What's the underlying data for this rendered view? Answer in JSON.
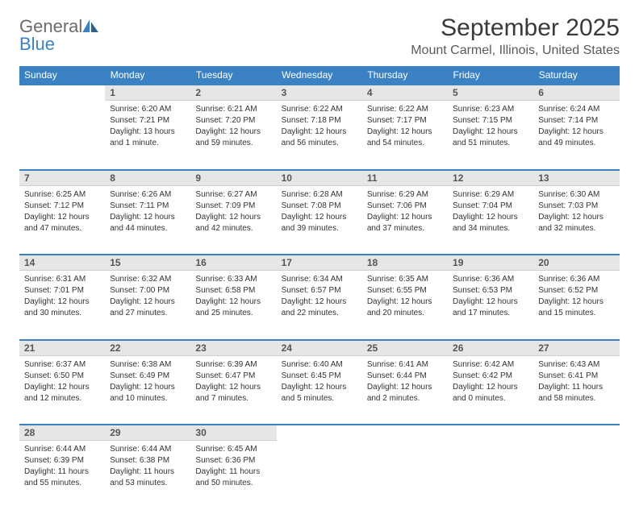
{
  "logo": {
    "word1": "General",
    "word2": "Blue"
  },
  "title": "September 2025",
  "location": "Mount Carmel, Illinois, United States",
  "colors": {
    "header_bg": "#3b82c4",
    "header_text": "#ffffff",
    "daynum_bg": "#e6e6e6",
    "border_blue": "#3b82c4",
    "text": "#333333",
    "logo_gray": "#6b6b6b",
    "logo_blue": "#3b82c4"
  },
  "dayHeaders": [
    "Sunday",
    "Monday",
    "Tuesday",
    "Wednesday",
    "Thursday",
    "Friday",
    "Saturday"
  ],
  "weeks": [
    {
      "nums": [
        "",
        "1",
        "2",
        "3",
        "4",
        "5",
        "6"
      ],
      "cells": [
        null,
        {
          "sunrise": "6:20 AM",
          "sunset": "7:21 PM",
          "daylight": "13 hours and 1 minute."
        },
        {
          "sunrise": "6:21 AM",
          "sunset": "7:20 PM",
          "daylight": "12 hours and 59 minutes."
        },
        {
          "sunrise": "6:22 AM",
          "sunset": "7:18 PM",
          "daylight": "12 hours and 56 minutes."
        },
        {
          "sunrise": "6:22 AM",
          "sunset": "7:17 PM",
          "daylight": "12 hours and 54 minutes."
        },
        {
          "sunrise": "6:23 AM",
          "sunset": "7:15 PM",
          "daylight": "12 hours and 51 minutes."
        },
        {
          "sunrise": "6:24 AM",
          "sunset": "7:14 PM",
          "daylight": "12 hours and 49 minutes."
        }
      ]
    },
    {
      "nums": [
        "7",
        "8",
        "9",
        "10",
        "11",
        "12",
        "13"
      ],
      "cells": [
        {
          "sunrise": "6:25 AM",
          "sunset": "7:12 PM",
          "daylight": "12 hours and 47 minutes."
        },
        {
          "sunrise": "6:26 AM",
          "sunset": "7:11 PM",
          "daylight": "12 hours and 44 minutes."
        },
        {
          "sunrise": "6:27 AM",
          "sunset": "7:09 PM",
          "daylight": "12 hours and 42 minutes."
        },
        {
          "sunrise": "6:28 AM",
          "sunset": "7:08 PM",
          "daylight": "12 hours and 39 minutes."
        },
        {
          "sunrise": "6:29 AM",
          "sunset": "7:06 PM",
          "daylight": "12 hours and 37 minutes."
        },
        {
          "sunrise": "6:29 AM",
          "sunset": "7:04 PM",
          "daylight": "12 hours and 34 minutes."
        },
        {
          "sunrise": "6:30 AM",
          "sunset": "7:03 PM",
          "daylight": "12 hours and 32 minutes."
        }
      ]
    },
    {
      "nums": [
        "14",
        "15",
        "16",
        "17",
        "18",
        "19",
        "20"
      ],
      "cells": [
        {
          "sunrise": "6:31 AM",
          "sunset": "7:01 PM",
          "daylight": "12 hours and 30 minutes."
        },
        {
          "sunrise": "6:32 AM",
          "sunset": "7:00 PM",
          "daylight": "12 hours and 27 minutes."
        },
        {
          "sunrise": "6:33 AM",
          "sunset": "6:58 PM",
          "daylight": "12 hours and 25 minutes."
        },
        {
          "sunrise": "6:34 AM",
          "sunset": "6:57 PM",
          "daylight": "12 hours and 22 minutes."
        },
        {
          "sunrise": "6:35 AM",
          "sunset": "6:55 PM",
          "daylight": "12 hours and 20 minutes."
        },
        {
          "sunrise": "6:36 AM",
          "sunset": "6:53 PM",
          "daylight": "12 hours and 17 minutes."
        },
        {
          "sunrise": "6:36 AM",
          "sunset": "6:52 PM",
          "daylight": "12 hours and 15 minutes."
        }
      ]
    },
    {
      "nums": [
        "21",
        "22",
        "23",
        "24",
        "25",
        "26",
        "27"
      ],
      "cells": [
        {
          "sunrise": "6:37 AM",
          "sunset": "6:50 PM",
          "daylight": "12 hours and 12 minutes."
        },
        {
          "sunrise": "6:38 AM",
          "sunset": "6:49 PM",
          "daylight": "12 hours and 10 minutes."
        },
        {
          "sunrise": "6:39 AM",
          "sunset": "6:47 PM",
          "daylight": "12 hours and 7 minutes."
        },
        {
          "sunrise": "6:40 AM",
          "sunset": "6:45 PM",
          "daylight": "12 hours and 5 minutes."
        },
        {
          "sunrise": "6:41 AM",
          "sunset": "6:44 PM",
          "daylight": "12 hours and 2 minutes."
        },
        {
          "sunrise": "6:42 AM",
          "sunset": "6:42 PM",
          "daylight": "12 hours and 0 minutes."
        },
        {
          "sunrise": "6:43 AM",
          "sunset": "6:41 PM",
          "daylight": "11 hours and 58 minutes."
        }
      ]
    },
    {
      "nums": [
        "28",
        "29",
        "30",
        "",
        "",
        "",
        ""
      ],
      "cells": [
        {
          "sunrise": "6:44 AM",
          "sunset": "6:39 PM",
          "daylight": "11 hours and 55 minutes."
        },
        {
          "sunrise": "6:44 AM",
          "sunset": "6:38 PM",
          "daylight": "11 hours and 53 minutes."
        },
        {
          "sunrise": "6:45 AM",
          "sunset": "6:36 PM",
          "daylight": "11 hours and 50 minutes."
        },
        null,
        null,
        null,
        null
      ]
    }
  ],
  "labels": {
    "sunrise": "Sunrise:",
    "sunset": "Sunset:",
    "daylight": "Daylight:"
  }
}
